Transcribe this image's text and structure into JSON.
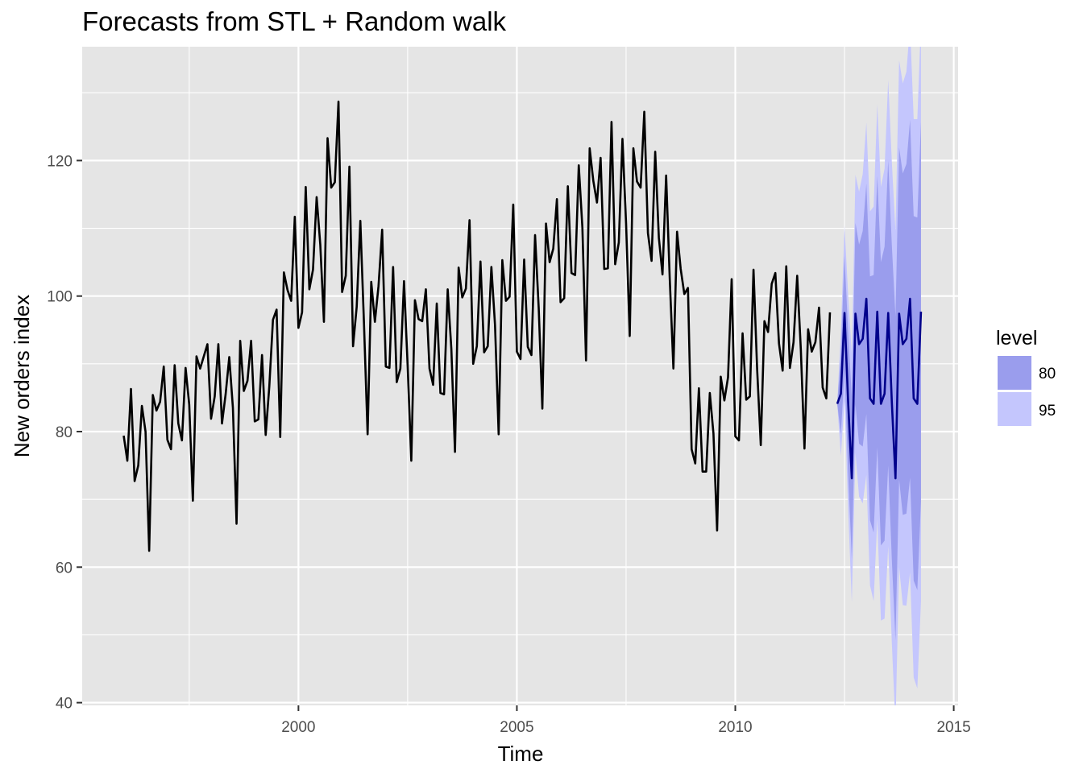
{
  "chart_data": {
    "type": "line",
    "title": "Forecasts from STL +  Random walk",
    "xlabel": "Time",
    "ylabel": "New orders index",
    "xlim": [
      1995.05,
      2015.1
    ],
    "ylim": [
      39.6,
      136.8
    ],
    "x_ticks": [
      2000,
      2005,
      2010,
      2015
    ],
    "x_tick_labels": [
      "2000",
      "2005",
      "2010",
      "2015"
    ],
    "y_ticks": [
      40,
      60,
      80,
      100,
      120
    ],
    "y_tick_labels": [
      "40",
      "60",
      "80",
      "100",
      "120"
    ],
    "grid": true,
    "legend": {
      "title": "level",
      "position": "right",
      "entries": [
        "80",
        "95"
      ]
    },
    "colors": {
      "panel": "#e5e5e5",
      "grid": "#ffffff",
      "history": "#000000",
      "forecast": "#00008b",
      "band80": "#9a9ded",
      "band95": "#c4c6fd",
      "tick_text": "#4d4d4d"
    },
    "history": {
      "start": [
        1996,
        1
      ],
      "frequency": 12,
      "values": [
        79.4,
        75.7,
        86.3,
        72.7,
        75.0,
        83.8,
        80.0,
        62.4,
        85.4,
        83.1,
        84.4,
        89.6,
        78.8,
        77.4,
        89.8,
        81.2,
        78.7,
        89.4,
        84.0,
        69.8,
        91.1,
        89.3,
        91.1,
        92.9,
        81.9,
        85.2,
        92.9,
        81.2,
        85.5,
        91.0,
        83.5,
        66.4,
        93.4,
        86.0,
        87.5,
        93.4,
        81.5,
        81.8,
        91.3,
        79.5,
        86.7,
        96.5,
        98.0,
        79.2,
        103.5,
        100.9,
        99.3,
        111.7,
        95.3,
        97.6,
        116.1,
        101.0,
        103.9,
        114.6,
        107.6,
        96.2,
        123.3,
        116.0,
        116.8,
        128.7,
        100.6,
        103.0,
        119.1,
        92.6,
        98.4,
        111.1,
        96.0,
        79.6,
        102.1,
        96.2,
        101.5,
        109.8,
        89.6,
        89.4,
        104.3,
        87.3,
        89.3,
        102.2,
        89.7,
        75.7,
        99.4,
        96.6,
        96.3,
        101.0,
        89.3,
        86.9,
        98.9,
        85.7,
        85.5,
        101.0,
        92.2,
        77.0,
        104.2,
        99.8,
        101.1,
        111.2,
        90.0,
        92.6,
        105.1,
        91.7,
        92.6,
        104.3,
        95.7,
        79.6,
        105.3,
        99.3,
        99.9,
        113.5,
        91.8,
        90.7,
        105.4,
        92.5,
        91.3,
        109.0,
        98.2,
        83.4,
        110.7,
        105.0,
        107.0,
        114.3,
        99.1,
        99.7,
        116.2,
        103.4,
        103.1,
        119.3,
        110.1,
        90.5,
        121.8,
        117.0,
        113.8,
        120.4,
        104.0,
        104.1,
        125.7,
        104.7,
        107.9,
        123.2,
        110.7,
        94.1,
        121.8,
        116.9,
        116.0,
        127.2,
        109.3,
        105.2,
        121.3,
        108.6,
        103.2,
        117.8,
        102.5,
        89.3,
        109.5,
        104.0,
        100.3,
        101.2,
        77.4,
        75.3,
        86.4,
        74.1,
        74.1,
        85.7,
        79.7,
        65.4,
        88.1,
        84.6,
        88.0,
        102.5,
        79.3,
        78.7,
        94.5,
        84.7,
        85.2,
        103.9,
        89.2,
        78.0,
        96.3,
        94.7,
        101.8,
        103.4,
        93.0,
        89.0,
        104.4,
        89.4,
        93.2,
        103.0,
        92.1,
        77.5,
        95.1,
        91.8,
        93.2,
        98.3,
        86.5,
        84.9,
        97.6
      ]
    },
    "forecast": {
      "start": [
        2012,
        5
      ],
      "frequency": 12,
      "mean": [
        84.1,
        85.6,
        97.5,
        84.3,
        73.1,
        97.4,
        92.9,
        93.7,
        99.6,
        84.9,
        84.1,
        97.7,
        84.1,
        85.6,
        97.5,
        84.3,
        73.1,
        97.4,
        92.9,
        93.7,
        99.6,
        84.9,
        84.1,
        97.7
      ],
      "lo80": [
        84.1,
        79.6,
        89.0,
        73.9,
        61.1,
        84.0,
        78.2,
        77.8,
        82.6,
        66.9,
        65.1,
        77.7,
        63.2,
        63.9,
        75.0,
        61.1,
        49.2,
        72.9,
        67.7,
        67.9,
        73.2,
        58.0,
        56.6,
        69.7
      ],
      "hi80": [
        84.1,
        91.6,
        106.0,
        94.7,
        85.1,
        110.8,
        107.6,
        109.6,
        116.6,
        102.9,
        103.1,
        117.7,
        105.0,
        107.3,
        120.0,
        107.5,
        97.0,
        121.9,
        118.1,
        119.5,
        126.0,
        111.8,
        111.6,
        125.7
      ],
      "lo95": [
        84.1,
        76.4,
        84.6,
        68.4,
        54.8,
        76.9,
        70.4,
        69.4,
        73.6,
        57.3,
        55.0,
        67.1,
        52.1,
        52.4,
        63.1,
        48.8,
        36.6,
        60.0,
        54.4,
        54.3,
        59.2,
        43.7,
        42.1,
        54.9
      ],
      "hi95": [
        84.1,
        94.8,
        110.4,
        100.2,
        91.4,
        117.9,
        115.4,
        118.0,
        125.6,
        112.5,
        113.2,
        128.3,
        116.1,
        118.8,
        131.9,
        119.8,
        109.6,
        134.8,
        131.4,
        133.1,
        140.0,
        126.1,
        126.1,
        140.5
      ]
    }
  }
}
